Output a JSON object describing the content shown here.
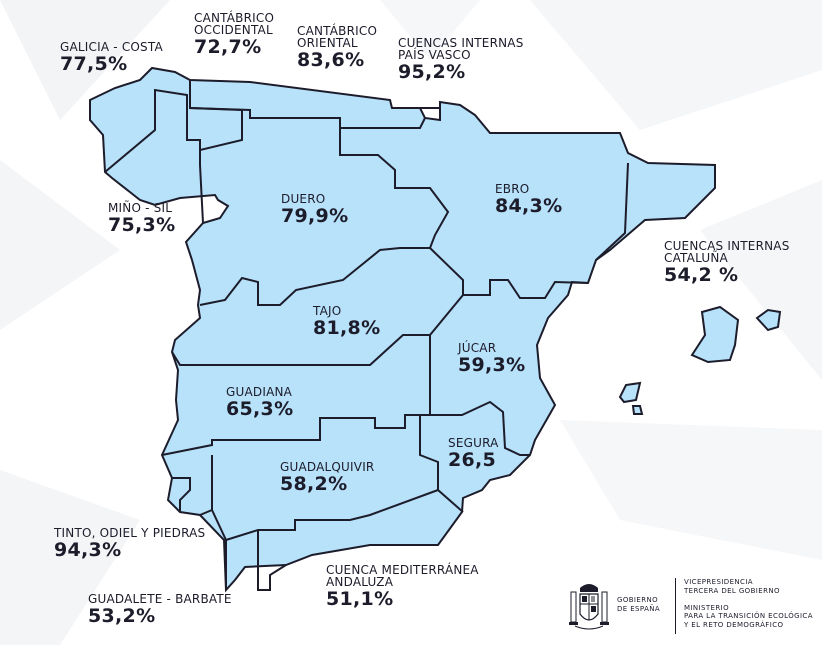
{
  "basins": [
    {
      "id": "galicia-costa",
      "name": "GALICIA - COSTA",
      "value": "77,5%"
    },
    {
      "id": "cantabrico-occidental",
      "name_line1": "CANTÁBRICO",
      "name_line2": "OCCIDENTAL",
      "value": "72,7%"
    },
    {
      "id": "cantabrico-oriental",
      "name_line1": "CANTÁBRICO",
      "name_line2": "ORIENTAL",
      "value": "83,6%"
    },
    {
      "id": "cuencas-internas-pais-vasco",
      "name_line1": "CUENCAS INTERNAS",
      "name_line2": "PAÍS VASCO",
      "value": "95,2%"
    },
    {
      "id": "mino-sil",
      "name": "MIÑO - SIL",
      "value": "75,3%"
    },
    {
      "id": "duero",
      "name": "DUERO",
      "value": "79,9%"
    },
    {
      "id": "ebro",
      "name": "EBRO",
      "value": "84,3%"
    },
    {
      "id": "cuencas-internas-cataluna",
      "name_line1": "CUENCAS INTERNAS",
      "name_line2": "CATALUÑA",
      "value": "54,2 %"
    },
    {
      "id": "tajo",
      "name": "TAJO",
      "value": "81,8%"
    },
    {
      "id": "jucar",
      "name": "JÚCAR",
      "value": "59,3%"
    },
    {
      "id": "guadiana",
      "name": "GUADIANA",
      "value": "65,3%"
    },
    {
      "id": "segura",
      "name": "SEGURA",
      "value": "26,5"
    },
    {
      "id": "guadalquivir",
      "name": "GUADALQUIVIR",
      "value": "58,2%"
    },
    {
      "id": "tinto-odiel-piedras",
      "name": "TINTO, ODIEL Y PIEDRAS",
      "value": "94,3%"
    },
    {
      "id": "cuenca-mediterranea-andaluza",
      "name_line1": "CUENCA MEDITERRÁNEA",
      "name_line2": "ANDALUZA",
      "value": "51,1%"
    },
    {
      "id": "guadalete-barbate",
      "name": "GUADALETE - BARBATE",
      "value": "53,2%"
    }
  ],
  "colors": {
    "basin_fill": "#b8e1fa",
    "border": "#1c1c2b",
    "text": "#1c1c2b",
    "background": "#ffffff"
  },
  "footer": {
    "gov_line1": "GOBIERNO",
    "gov_line2": "DE ESPAÑA",
    "ministry_line1": "VICEPRESIDENCIA",
    "ministry_line2": "TERCERA DEL GOBIERNO",
    "ministry_line3": "MINISTERIO",
    "ministry_line4": "PARA LA TRANSICIÓN ECOLÓGICA",
    "ministry_line5": "Y EL RETO DEMOGRÁFICO",
    "emblem_icon": "coat-of-arms-icon"
  }
}
